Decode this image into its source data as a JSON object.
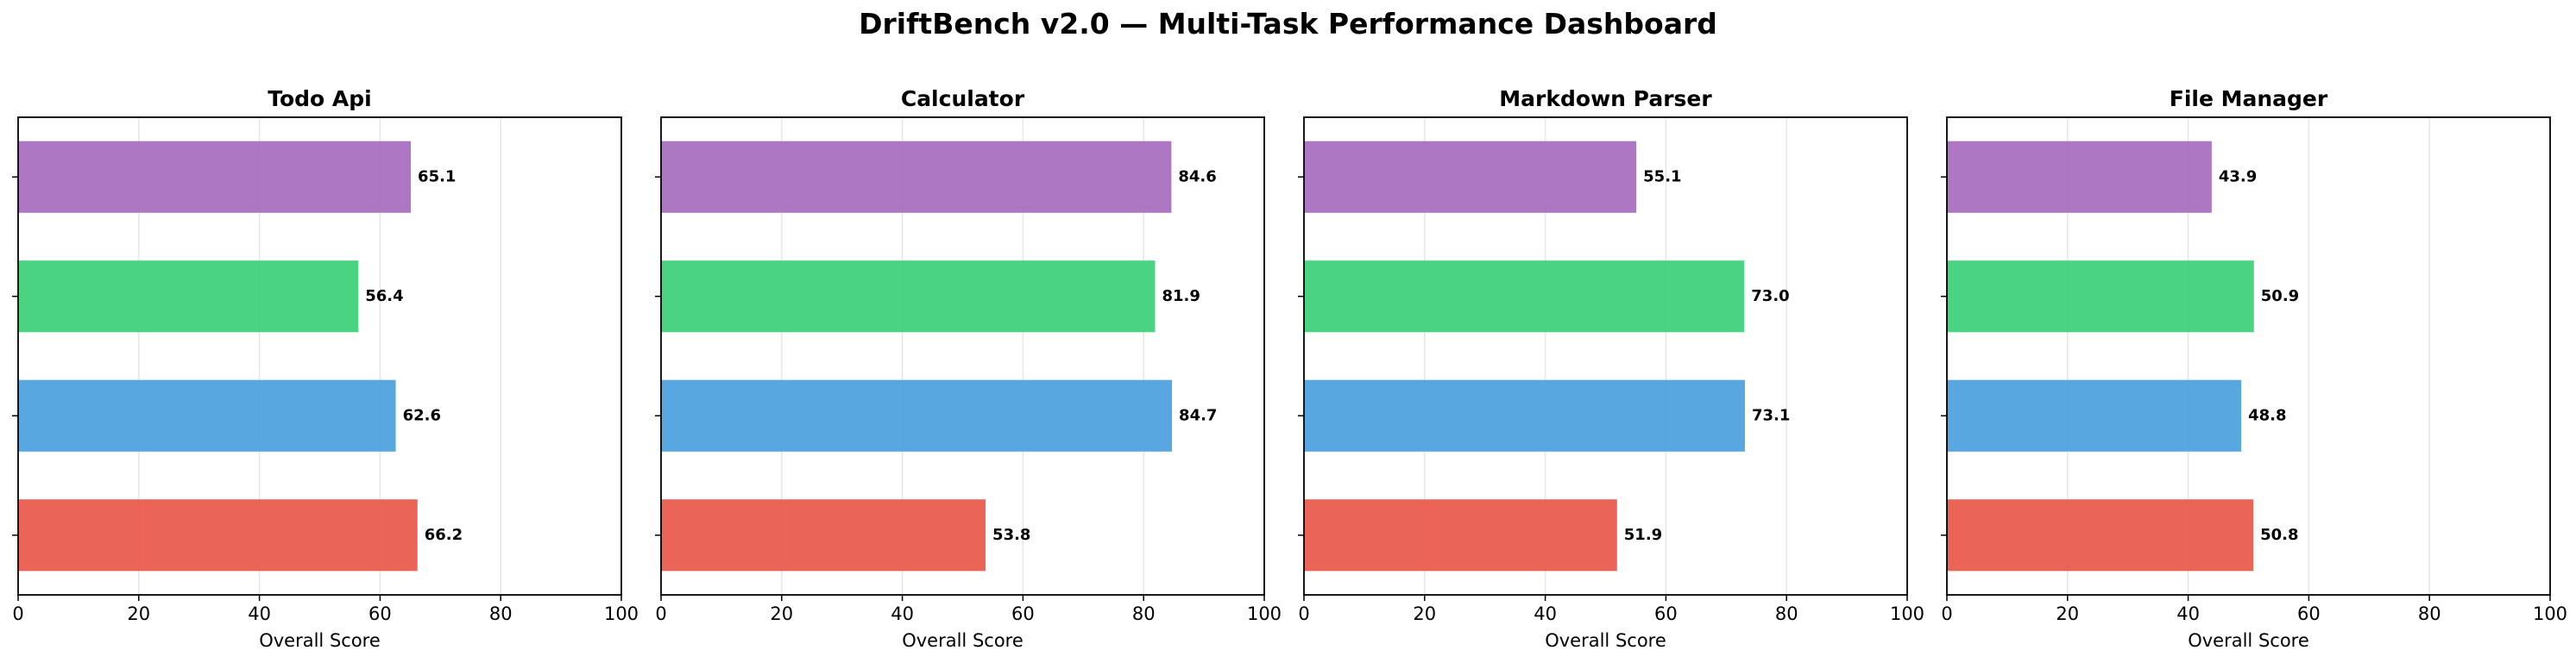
{
  "page": {
    "title": "DriftBench v2.0 — Multi-Task Performance Dashboard"
  },
  "colors": {
    "bar_colors": [
      "#a66bbf",
      "#3ccf7a",
      "#4aa0de",
      "#e9574a"
    ],
    "grid": "#e6e6e6",
    "axes": "#000000"
  },
  "chart_data": [
    {
      "type": "bar",
      "orientation": "horizontal",
      "title": "Todo Api",
      "xlabel": "Overall Score",
      "xlim": [
        0,
        100
      ],
      "xticks": [
        0,
        20,
        40,
        60,
        80,
        100
      ],
      "grid": "vertical",
      "values": [
        65.1,
        56.4,
        62.6,
        66.2
      ],
      "value_labels": [
        "65.1",
        "56.4",
        "62.6",
        "66.2"
      ]
    },
    {
      "type": "bar",
      "orientation": "horizontal",
      "title": "Calculator",
      "xlabel": "Overall Score",
      "xlim": [
        0,
        100
      ],
      "xticks": [
        0,
        20,
        40,
        60,
        80,
        100
      ],
      "grid": "vertical",
      "values": [
        84.6,
        81.9,
        84.7,
        53.8
      ],
      "value_labels": [
        "84.6",
        "81.9",
        "84.7",
        "53.8"
      ]
    },
    {
      "type": "bar",
      "orientation": "horizontal",
      "title": "Markdown Parser",
      "xlabel": "Overall Score",
      "xlim": [
        0,
        100
      ],
      "xticks": [
        0,
        20,
        40,
        60,
        80,
        100
      ],
      "grid": "vertical",
      "values": [
        55.1,
        73.0,
        73.1,
        51.9
      ],
      "value_labels": [
        "55.1",
        "73.0",
        "73.1",
        "51.9"
      ]
    },
    {
      "type": "bar",
      "orientation": "horizontal",
      "title": "File Manager",
      "xlabel": "Overall Score",
      "xlim": [
        0,
        100
      ],
      "xticks": [
        0,
        20,
        40,
        60,
        80,
        100
      ],
      "grid": "vertical",
      "values": [
        43.9,
        50.9,
        48.8,
        50.8
      ],
      "value_labels": [
        "43.9",
        "50.9",
        "48.8",
        "50.8"
      ]
    }
  ]
}
